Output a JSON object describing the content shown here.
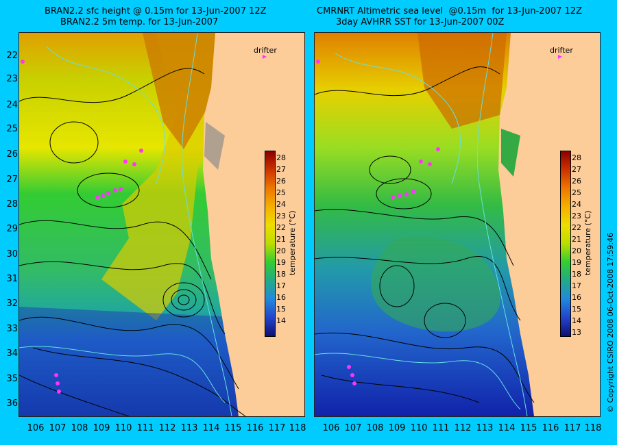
{
  "left": {
    "title_line1": "BRAN2.2 sfc height @ 0.15m for 13-Jun-2007 12Z",
    "title_line2": "BRAN2.2 5m temp. for 13-Jun-2007",
    "drifter": "drifter",
    "colorbar_ticks": [
      "28",
      "27",
      "26",
      "25",
      "24",
      "23",
      "22",
      "21",
      "20",
      "19",
      "18",
      "17",
      "16",
      "15",
      "14"
    ]
  },
  "right": {
    "title_line1": "CMRNRT Altimetric sea level  @0.15m  for 13-Jun-2007 12Z",
    "title_line2": "3day AVHRR SST for 13-Jun-2007 00Z",
    "drifter": "drifter",
    "colorbar_ticks": [
      "28",
      "27",
      "26",
      "25",
      "24",
      "23",
      "22",
      "21",
      "20",
      "19",
      "18",
      "17",
      "16",
      "15",
      "14",
      "13"
    ]
  },
  "colorbar_title": "temperature (°C)",
  "latitudes": [
    "22",
    "23",
    "24",
    "25",
    "26",
    "27",
    "28",
    "29",
    "30",
    "31",
    "32",
    "33",
    "34",
    "35",
    "36"
  ],
  "longitudes": [
    "106",
    "107",
    "108",
    "109",
    "110",
    "111",
    "112",
    "113",
    "114",
    "115",
    "116",
    "117",
    "118"
  ],
  "copyright": "© Copyright CSIRO 2008   06-Oct-2008 17:59:46",
  "colors": {
    "background": "#00ccff",
    "land": "#fccc99",
    "drifter": "#ff33ff",
    "contour": "#000000",
    "bathy": "#66e0e0"
  }
}
